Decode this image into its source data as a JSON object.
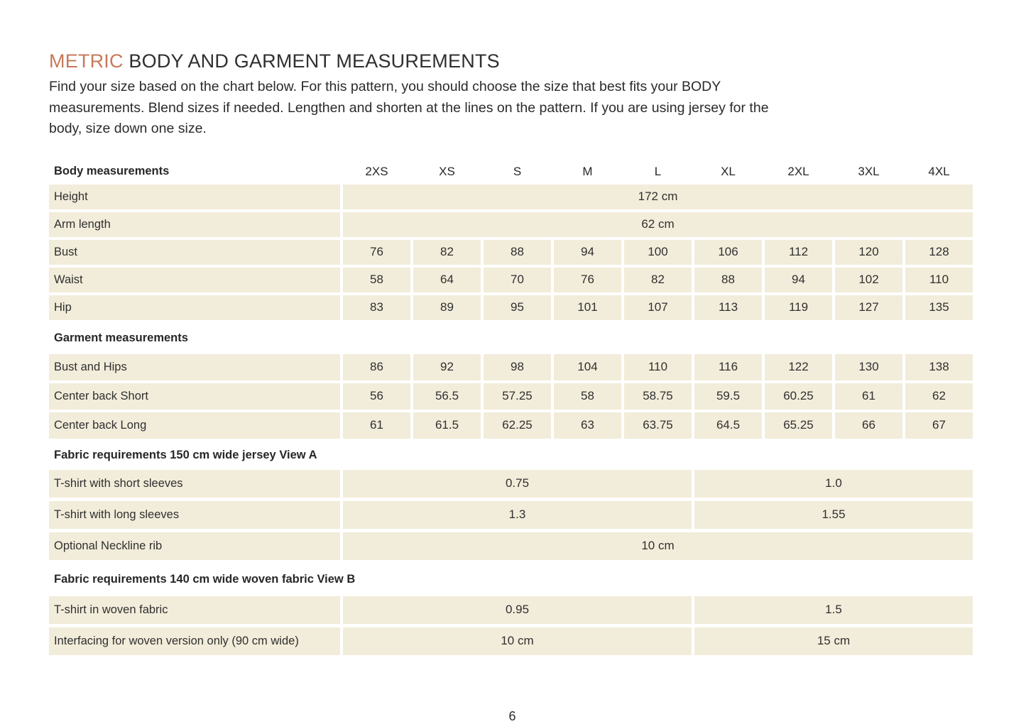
{
  "page": {
    "title_accent": "METRIC",
    "title_rest": " BODY AND GARMENT MEASUREMENTS",
    "intro_lines": [
      "Find your size based on the chart below. For this pattern, you should choose the size that best fits your BODY",
      "measurements. Blend sizes if needed. Lengthen and shorten at the lines on the pattern. If you are using jersey for the",
      "body, size down one size."
    ],
    "page_number": "6"
  },
  "colors": {
    "accent": "#c67a5a",
    "cell_background": "#f2ecda",
    "text": "#2c2c2c"
  },
  "table": {
    "header_label": "Body measurements",
    "size_headers": [
      "2XS",
      "XS",
      "S",
      "M",
      "L",
      "XL",
      "2XL",
      "3XL",
      "4XL"
    ],
    "sections": [
      {
        "heading": null,
        "rows": [
          {
            "label": "Height",
            "type": "full-span",
            "value": "172 cm"
          },
          {
            "label": "Arm length",
            "type": "full-span",
            "value": "62 cm"
          },
          {
            "label": "Bust",
            "type": "cells",
            "values": [
              "76",
              "82",
              "88",
              "94",
              "100",
              "106",
              "112",
              "120",
              "128"
            ]
          },
          {
            "label": "Waist",
            "type": "cells",
            "values": [
              "58",
              "64",
              "70",
              "76",
              "82",
              "88",
              "94",
              "102",
              "110"
            ]
          },
          {
            "label": "Hip",
            "type": "cells",
            "values": [
              "83",
              "89",
              "95",
              "101",
              "107",
              "113",
              "119",
              "127",
              "135"
            ]
          }
        ]
      },
      {
        "heading": "Garment measurements",
        "rows": [
          {
            "label": "Bust and Hips",
            "type": "cells",
            "values": [
              "86",
              "92",
              "98",
              "104",
              "110",
              "116",
              "122",
              "130",
              "138"
            ]
          },
          {
            "label": "Center back Short",
            "type": "cells",
            "values": [
              "56",
              "56.5",
              "57.25",
              "58",
              "58.75",
              "59.5",
              "60.25",
              "61",
              "62"
            ]
          },
          {
            "label": "Center back Long",
            "type": "cells",
            "values": [
              "61",
              "61.5",
              "62.25",
              "63",
              "63.75",
              "64.5",
              "65.25",
              "66",
              "67"
            ]
          }
        ]
      },
      {
        "heading": "Fabric requirements 150 cm wide jersey View A",
        "rows": [
          {
            "label": "T-shirt with short sleeves",
            "type": "two-span",
            "values": [
              "0.75",
              "1.0"
            ]
          },
          {
            "label": "T-shirt with long sleeves",
            "type": "two-span",
            "values": [
              "1.3",
              "1.55"
            ]
          },
          {
            "label": "Optional Neckline rib",
            "type": "full-span",
            "value": "10 cm"
          }
        ]
      },
      {
        "heading": "Fabric requirements 140 cm wide woven fabric View B",
        "rows": [
          {
            "label": "T-shirt in woven fabric",
            "type": "two-span",
            "values": [
              "0.95",
              "1.5"
            ]
          },
          {
            "label": "Interfacing for woven version only (90 cm wide)",
            "type": "two-span",
            "values": [
              "10 cm",
              "15 cm"
            ]
          }
        ]
      }
    ]
  }
}
